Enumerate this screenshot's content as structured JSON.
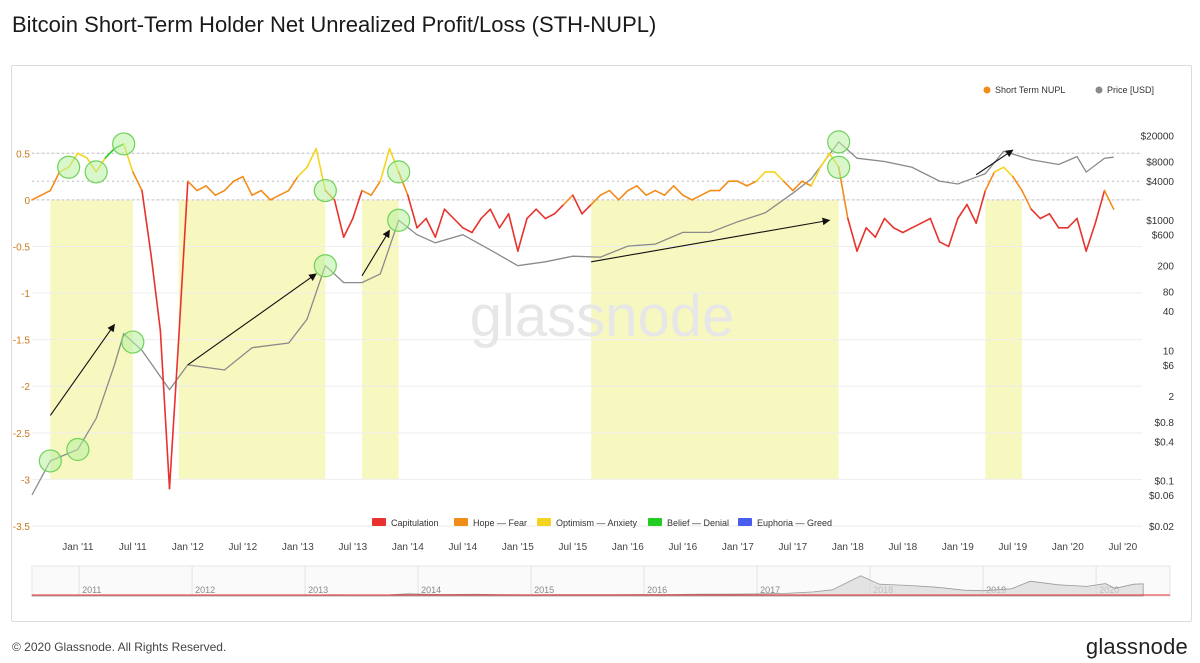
{
  "title": "Bitcoin Short-Term Holder Net Unrealized Profit/Loss (STH-NUPL)",
  "footer": {
    "copyright": "© 2020 Glassnode. All Rights Reserved.",
    "brand": "glassnode"
  },
  "watermark": "glassnode",
  "colors": {
    "capitulation": "#e8322e",
    "hope_fear": "#f28c1a",
    "optimism_anxiety": "#f5d420",
    "belief_denial": "#22cc22",
    "euphoria_greed": "#4a5cf0",
    "price": "#8a8a8a",
    "band": "#f7f7c0",
    "circle": "#b8f0a0"
  },
  "chart_data": {
    "type": "line",
    "x_range": [
      "2010-08",
      "2020-08"
    ],
    "x_ticks": [
      "Jan '11",
      "Jul '11",
      "Jan '12",
      "Jul '12",
      "Jan '13",
      "Jul '13",
      "Jan '14",
      "Jul '14",
      "Jan '15",
      "Jul '15",
      "Jan '16",
      "Jul '16",
      "Jan '17",
      "Jul '17",
      "Jan '18",
      "Jul '18",
      "Jan '19",
      "Jul '19",
      "Jan '20",
      "Jul '20"
    ],
    "y_left": {
      "label": "",
      "range": [
        -3.5,
        0.9
      ],
      "ticks": [
        "0.5",
        "0",
        "-0.5",
        "-1",
        "-1.5",
        "-2",
        "-2.5",
        "-3",
        "-3.5"
      ]
    },
    "y_right": {
      "label": "",
      "scale": "log",
      "range": [
        0.02,
        40000
      ],
      "ticks": [
        "$20000",
        "$8000",
        "$4000",
        "$1000",
        "$600",
        "200",
        "80",
        "40",
        "10",
        "$6",
        "2",
        "$0.8",
        "$0.4",
        "$0.1",
        "$0.06",
        "$0.02"
      ]
    },
    "legend_top": [
      "Short Term NUPL",
      "Price [USD]"
    ],
    "legend_bottom": [
      "Capitulation",
      "Hope — Fear",
      "Optimism — Anxiety",
      "Belief — Denial",
      "Euphoria — Greed"
    ],
    "navigator_years": [
      "2011",
      "2012",
      "2013",
      "2014",
      "2015",
      "2016",
      "2017",
      "2018",
      "2019",
      "2020"
    ],
    "series": [
      {
        "name": "Short Term NUPL",
        "x": [
          "2010-08",
          "2010-09",
          "2010-10",
          "2010-11",
          "2010-12",
          "2011-01",
          "2011-02",
          "2011-03",
          "2011-04",
          "2011-05",
          "2011-06",
          "2011-07",
          "2011-08",
          "2011-09",
          "2011-10",
          "2011-11",
          "2011-12",
          "2012-01",
          "2012-02",
          "2012-03",
          "2012-04",
          "2012-05",
          "2012-06",
          "2012-07",
          "2012-08",
          "2012-09",
          "2012-10",
          "2012-11",
          "2012-12",
          "2013-01",
          "2013-02",
          "2013-03",
          "2013-04",
          "2013-05",
          "2013-06",
          "2013-07",
          "2013-08",
          "2013-09",
          "2013-10",
          "2013-11",
          "2013-12",
          "2014-01",
          "2014-02",
          "2014-03",
          "2014-04",
          "2014-05",
          "2014-06",
          "2014-07",
          "2014-08",
          "2014-09",
          "2014-10",
          "2014-11",
          "2014-12",
          "2015-01",
          "2015-02",
          "2015-03",
          "2015-04",
          "2015-05",
          "2015-06",
          "2015-07",
          "2015-08",
          "2015-09",
          "2015-10",
          "2015-11",
          "2015-12",
          "2016-01",
          "2016-02",
          "2016-03",
          "2016-04",
          "2016-05",
          "2016-06",
          "2016-07",
          "2016-08",
          "2016-09",
          "2016-10",
          "2016-11",
          "2016-12",
          "2017-01",
          "2017-02",
          "2017-03",
          "2017-04",
          "2017-05",
          "2017-06",
          "2017-07",
          "2017-08",
          "2017-09",
          "2017-10",
          "2017-11",
          "2017-12",
          "2018-01",
          "2018-02",
          "2018-03",
          "2018-04",
          "2018-05",
          "2018-06",
          "2018-07",
          "2018-08",
          "2018-09",
          "2018-10",
          "2018-11",
          "2018-12",
          "2019-01",
          "2019-02",
          "2019-03",
          "2019-04",
          "2019-05",
          "2019-06",
          "2019-07",
          "2019-08",
          "2019-09",
          "2019-10",
          "2019-11",
          "2019-12",
          "2020-01",
          "2020-02",
          "2020-03",
          "2020-04",
          "2020-05",
          "2020-06"
        ],
        "y": [
          0.0,
          0.05,
          0.1,
          0.3,
          0.35,
          0.5,
          0.45,
          0.3,
          0.45,
          0.55,
          0.6,
          0.3,
          0.1,
          -0.6,
          -1.4,
          -3.1,
          -1.5,
          0.2,
          0.1,
          0.15,
          0.05,
          0.1,
          0.2,
          0.25,
          0.05,
          0.1,
          0.0,
          0.05,
          0.1,
          0.25,
          0.35,
          0.55,
          0.1,
          0.0,
          -0.4,
          -0.2,
          0.1,
          0.05,
          0.2,
          0.55,
          0.3,
          0.05,
          -0.3,
          -0.2,
          -0.4,
          -0.1,
          -0.2,
          -0.3,
          -0.35,
          -0.2,
          -0.1,
          -0.3,
          -0.15,
          -0.55,
          -0.2,
          -0.1,
          -0.2,
          -0.15,
          -0.05,
          0.05,
          -0.15,
          -0.05,
          0.05,
          0.1,
          0.0,
          0.1,
          0.15,
          0.05,
          0.1,
          0.05,
          0.15,
          0.05,
          0.0,
          0.05,
          0.1,
          0.1,
          0.2,
          0.2,
          0.15,
          0.2,
          0.3,
          0.3,
          0.2,
          0.1,
          0.2,
          0.15,
          0.35,
          0.5,
          0.35,
          -0.2,
          -0.55,
          -0.3,
          -0.4,
          -0.2,
          -0.3,
          -0.35,
          -0.3,
          -0.25,
          -0.2,
          -0.45,
          -0.5,
          -0.2,
          -0.05,
          -0.25,
          0.1,
          0.3,
          0.35,
          0.25,
          0.1,
          -0.1,
          -0.2,
          -0.15,
          -0.3,
          -0.3,
          -0.2,
          -0.55,
          -0.25,
          0.1,
          -0.1
        ],
        "colored_by_zone": true
      },
      {
        "name": "Price [USD]",
        "x": [
          "2010-08",
          "2010-10",
          "2011-01",
          "2011-03",
          "2011-05",
          "2011-06",
          "2011-08",
          "2011-11",
          "2012-01",
          "2012-05",
          "2012-08",
          "2012-12",
          "2013-02",
          "2013-04",
          "2013-06",
          "2013-08",
          "2013-10",
          "2013-12",
          "2014-02",
          "2014-04",
          "2014-07",
          "2014-10",
          "2015-01",
          "2015-04",
          "2015-07",
          "2015-10",
          "2016-01",
          "2016-04",
          "2016-07",
          "2016-10",
          "2017-01",
          "2017-04",
          "2017-07",
          "2017-09",
          "2017-12",
          "2018-02",
          "2018-05",
          "2018-08",
          "2018-11",
          "2019-01",
          "2019-04",
          "2019-06",
          "2019-09",
          "2019-12",
          "2020-02",
          "2020-03",
          "2020-05",
          "2020-06"
        ],
        "y": [
          0.06,
          0.2,
          0.3,
          0.9,
          6.0,
          18.0,
          10.0,
          2.5,
          6.0,
          5.0,
          11.0,
          13.0,
          30.0,
          200.0,
          110.0,
          110.0,
          150.0,
          1000.0,
          600.0,
          450.0,
          600.0,
          350.0,
          200.0,
          230.0,
          280.0,
          270.0,
          400.0,
          430.0,
          650.0,
          650.0,
          950.0,
          1300.0,
          2600.0,
          4300.0,
          16000.0,
          9000.0,
          8000.0,
          6500.0,
          4000.0,
          3600.0,
          5200.0,
          11500.0,
          8500.0,
          7200.0,
          9500.0,
          5500.0,
          9000.0,
          9300.0
        ]
      }
    ],
    "highlight_bands": [
      [
        "2010-10",
        "2011-07"
      ],
      [
        "2011-12",
        "2013-04"
      ],
      [
        "2013-08",
        "2013-12"
      ],
      [
        "2015-09",
        "2017-12"
      ],
      [
        "2019-04",
        "2019-08"
      ]
    ],
    "circles_nupl": [
      "2010-12",
      "2011-03",
      "2011-06",
      "2013-04",
      "2013-12",
      "2017-12"
    ],
    "circles_price": [
      "2010-10",
      "2011-01",
      "2011-07",
      "2013-04",
      "2013-12",
      "2017-12"
    ],
    "arrows": [
      {
        "from": [
          "2010-10",
          1.0
        ],
        "to": [
          "2011-05",
          25.0
        ]
      },
      {
        "from": [
          "2012-01",
          6.0
        ],
        "to": [
          "2013-03",
          150.0
        ]
      },
      {
        "from": [
          "2013-08",
          140.0
        ],
        "to": [
          "2013-11",
          700.0
        ]
      },
      {
        "from": [
          "2015-09",
          230.0
        ],
        "to": [
          "2017-11",
          1000.0
        ]
      },
      {
        "from": [
          "2019-03",
          5000.0
        ],
        "to": [
          "2019-07",
          12000.0
        ]
      }
    ]
  }
}
